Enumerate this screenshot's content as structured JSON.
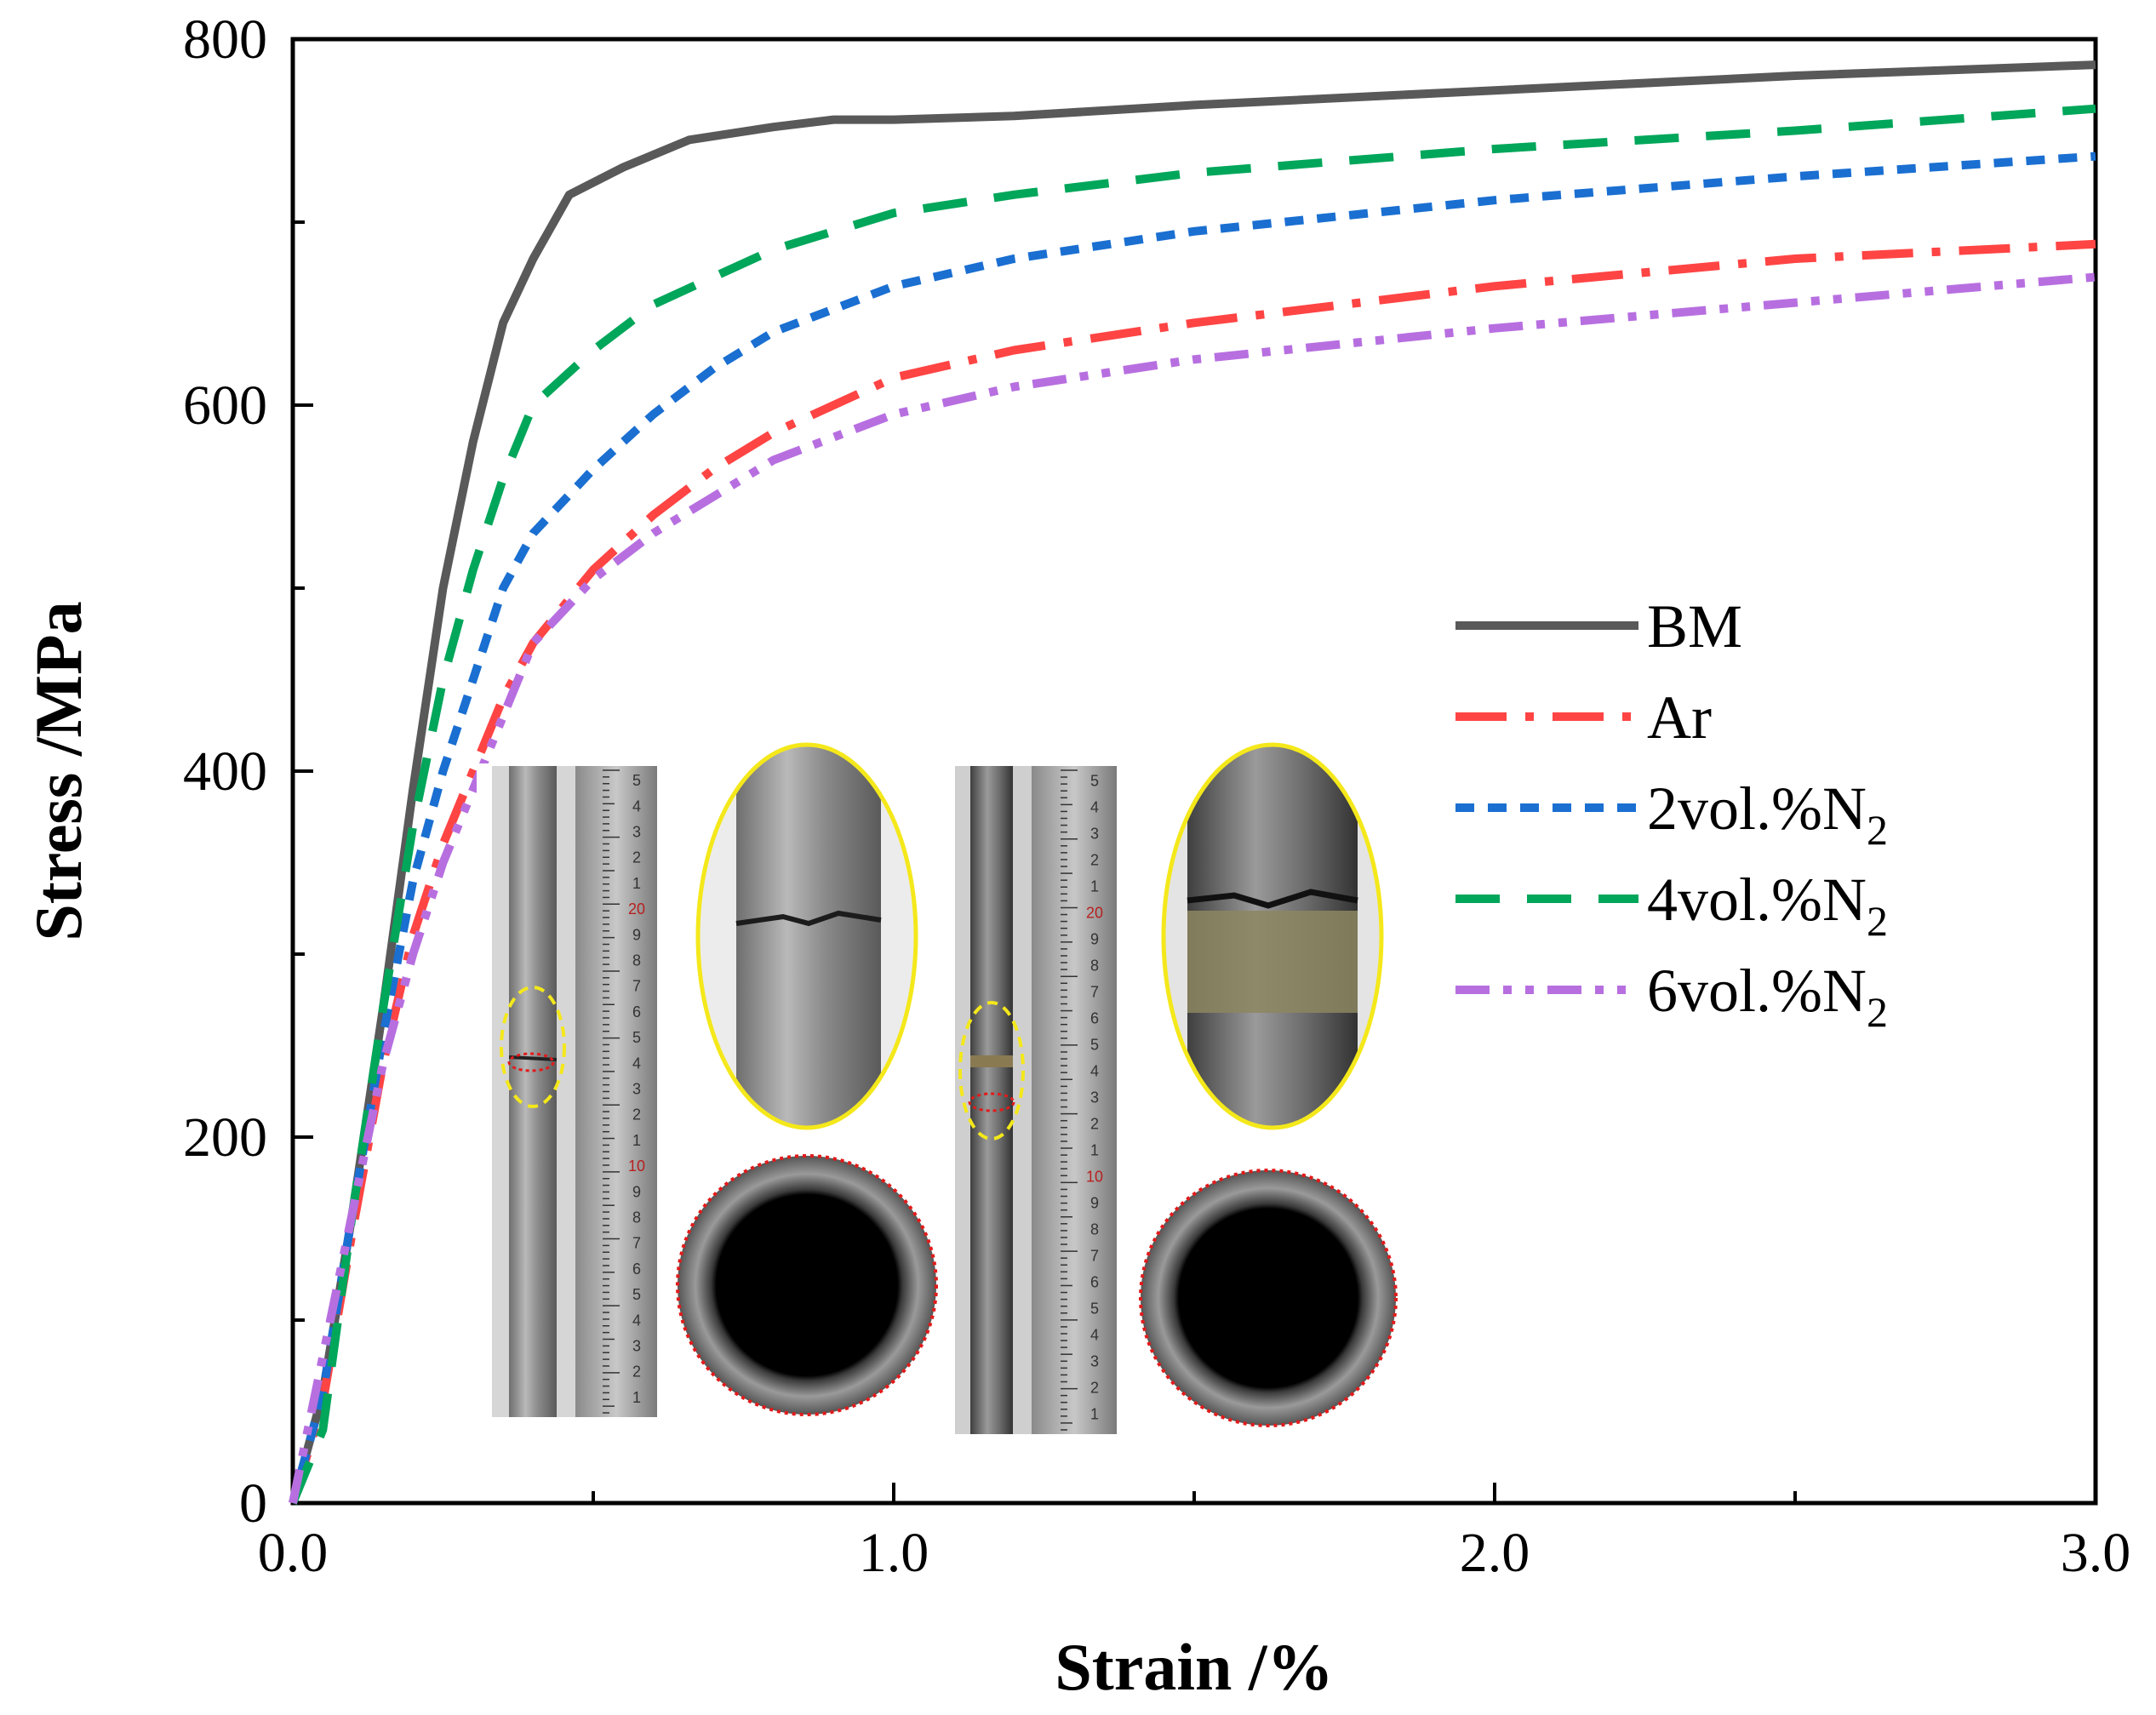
{
  "chart_data": {
    "type": "line",
    "title": "",
    "xlabel": "Strain /%",
    "ylabel": "Stress /MPa",
    "xlim": [
      0,
      3.0
    ],
    "ylim": [
      0,
      800
    ],
    "x_ticks": [
      "0.0",
      "1.0",
      "2.0",
      "3.0"
    ],
    "y_ticks": [
      "0",
      "200",
      "400",
      "600",
      "800"
    ],
    "legend_position": "right-middle",
    "series": [
      {
        "name": "BM",
        "color": "#595959",
        "dash": "solid",
        "x": [
          0,
          0.05,
          0.1,
          0.15,
          0.2,
          0.25,
          0.3,
          0.35,
          0.4,
          0.46,
          0.55,
          0.66,
          0.8,
          0.9,
          1.0,
          1.2,
          1.5,
          2.0,
          2.5,
          3.0
        ],
        "y": [
          0,
          60,
          160,
          270,
          390,
          500,
          580,
          645,
          680,
          715,
          730,
          745,
          752,
          756,
          756,
          758,
          764,
          772,
          780,
          786
        ]
      },
      {
        "name": "Ar",
        "color": "#ff4444",
        "dash": "dashdot",
        "x": [
          0,
          0.05,
          0.1,
          0.15,
          0.2,
          0.25,
          0.3,
          0.35,
          0.4,
          0.5,
          0.6,
          0.7,
          0.8,
          1.0,
          1.2,
          1.5,
          2.0,
          2.5,
          3.0
        ],
        "y": [
          0,
          55,
          150,
          240,
          310,
          360,
          400,
          440,
          470,
          510,
          540,
          565,
          585,
          615,
          630,
          645,
          665,
          680,
          688
        ]
      },
      {
        "name": "2vol.%N2",
        "color": "#1a6fd1",
        "dash": "dash",
        "x": [
          0,
          0.05,
          0.1,
          0.15,
          0.2,
          0.25,
          0.3,
          0.35,
          0.4,
          0.5,
          0.6,
          0.7,
          0.8,
          1.0,
          1.2,
          1.5,
          2.0,
          2.5,
          3.0
        ],
        "y": [
          0,
          60,
          160,
          255,
          340,
          400,
          450,
          500,
          530,
          565,
          595,
          620,
          640,
          665,
          680,
          695,
          712,
          725,
          736
        ]
      },
      {
        "name": "4vol.%N2",
        "color": "#00a65a",
        "dash": "longdash",
        "x": [
          0,
          0.05,
          0.1,
          0.15,
          0.2,
          0.25,
          0.3,
          0.35,
          0.4,
          0.5,
          0.6,
          0.7,
          0.8,
          1.0,
          1.2,
          1.5,
          2.0,
          2.5,
          3.0
        ],
        "y": [
          0,
          40,
          160,
          270,
          370,
          450,
          510,
          560,
          600,
          630,
          655,
          670,
          685,
          705,
          715,
          727,
          740,
          750,
          762
        ]
      },
      {
        "name": "6vol.%N2",
        "color": "#b76fe0",
        "dash": "dashdotdot",
        "x": [
          0,
          0.05,
          0.1,
          0.15,
          0.2,
          0.25,
          0.3,
          0.35,
          0.4,
          0.5,
          0.6,
          0.7,
          0.8,
          1.0,
          1.2,
          1.5,
          2.0,
          2.5,
          3.0
        ],
        "y": [
          0,
          80,
          160,
          240,
          300,
          350,
          390,
          430,
          470,
          505,
          530,
          550,
          570,
          595,
          610,
          625,
          642,
          656,
          670
        ]
      }
    ],
    "legend_labels": [
      {
        "main": "BM",
        "sub": ""
      },
      {
        "main": "Ar",
        "sub": ""
      },
      {
        "main": "2vol.%N",
        "sub": "2"
      },
      {
        "main": "4vol.%N",
        "sub": "2"
      },
      {
        "main": "6vol.%N",
        "sub": "2"
      }
    ],
    "inset_photos": [
      "fractured-tube-specimen-1",
      "fracture-closeup-1",
      "tube-cross-section-1",
      "fractured-tube-specimen-2",
      "fracture-closeup-2",
      "tube-cross-section-2"
    ],
    "inset_ruler_marks": [
      "5",
      "4",
      "3",
      "2",
      "1",
      "20",
      "9",
      "8",
      "7",
      "6",
      "5",
      "4",
      "3",
      "2",
      "1",
      "10",
      "9",
      "8",
      "7",
      "6",
      "5",
      "4",
      "3",
      "2",
      "1"
    ]
  }
}
